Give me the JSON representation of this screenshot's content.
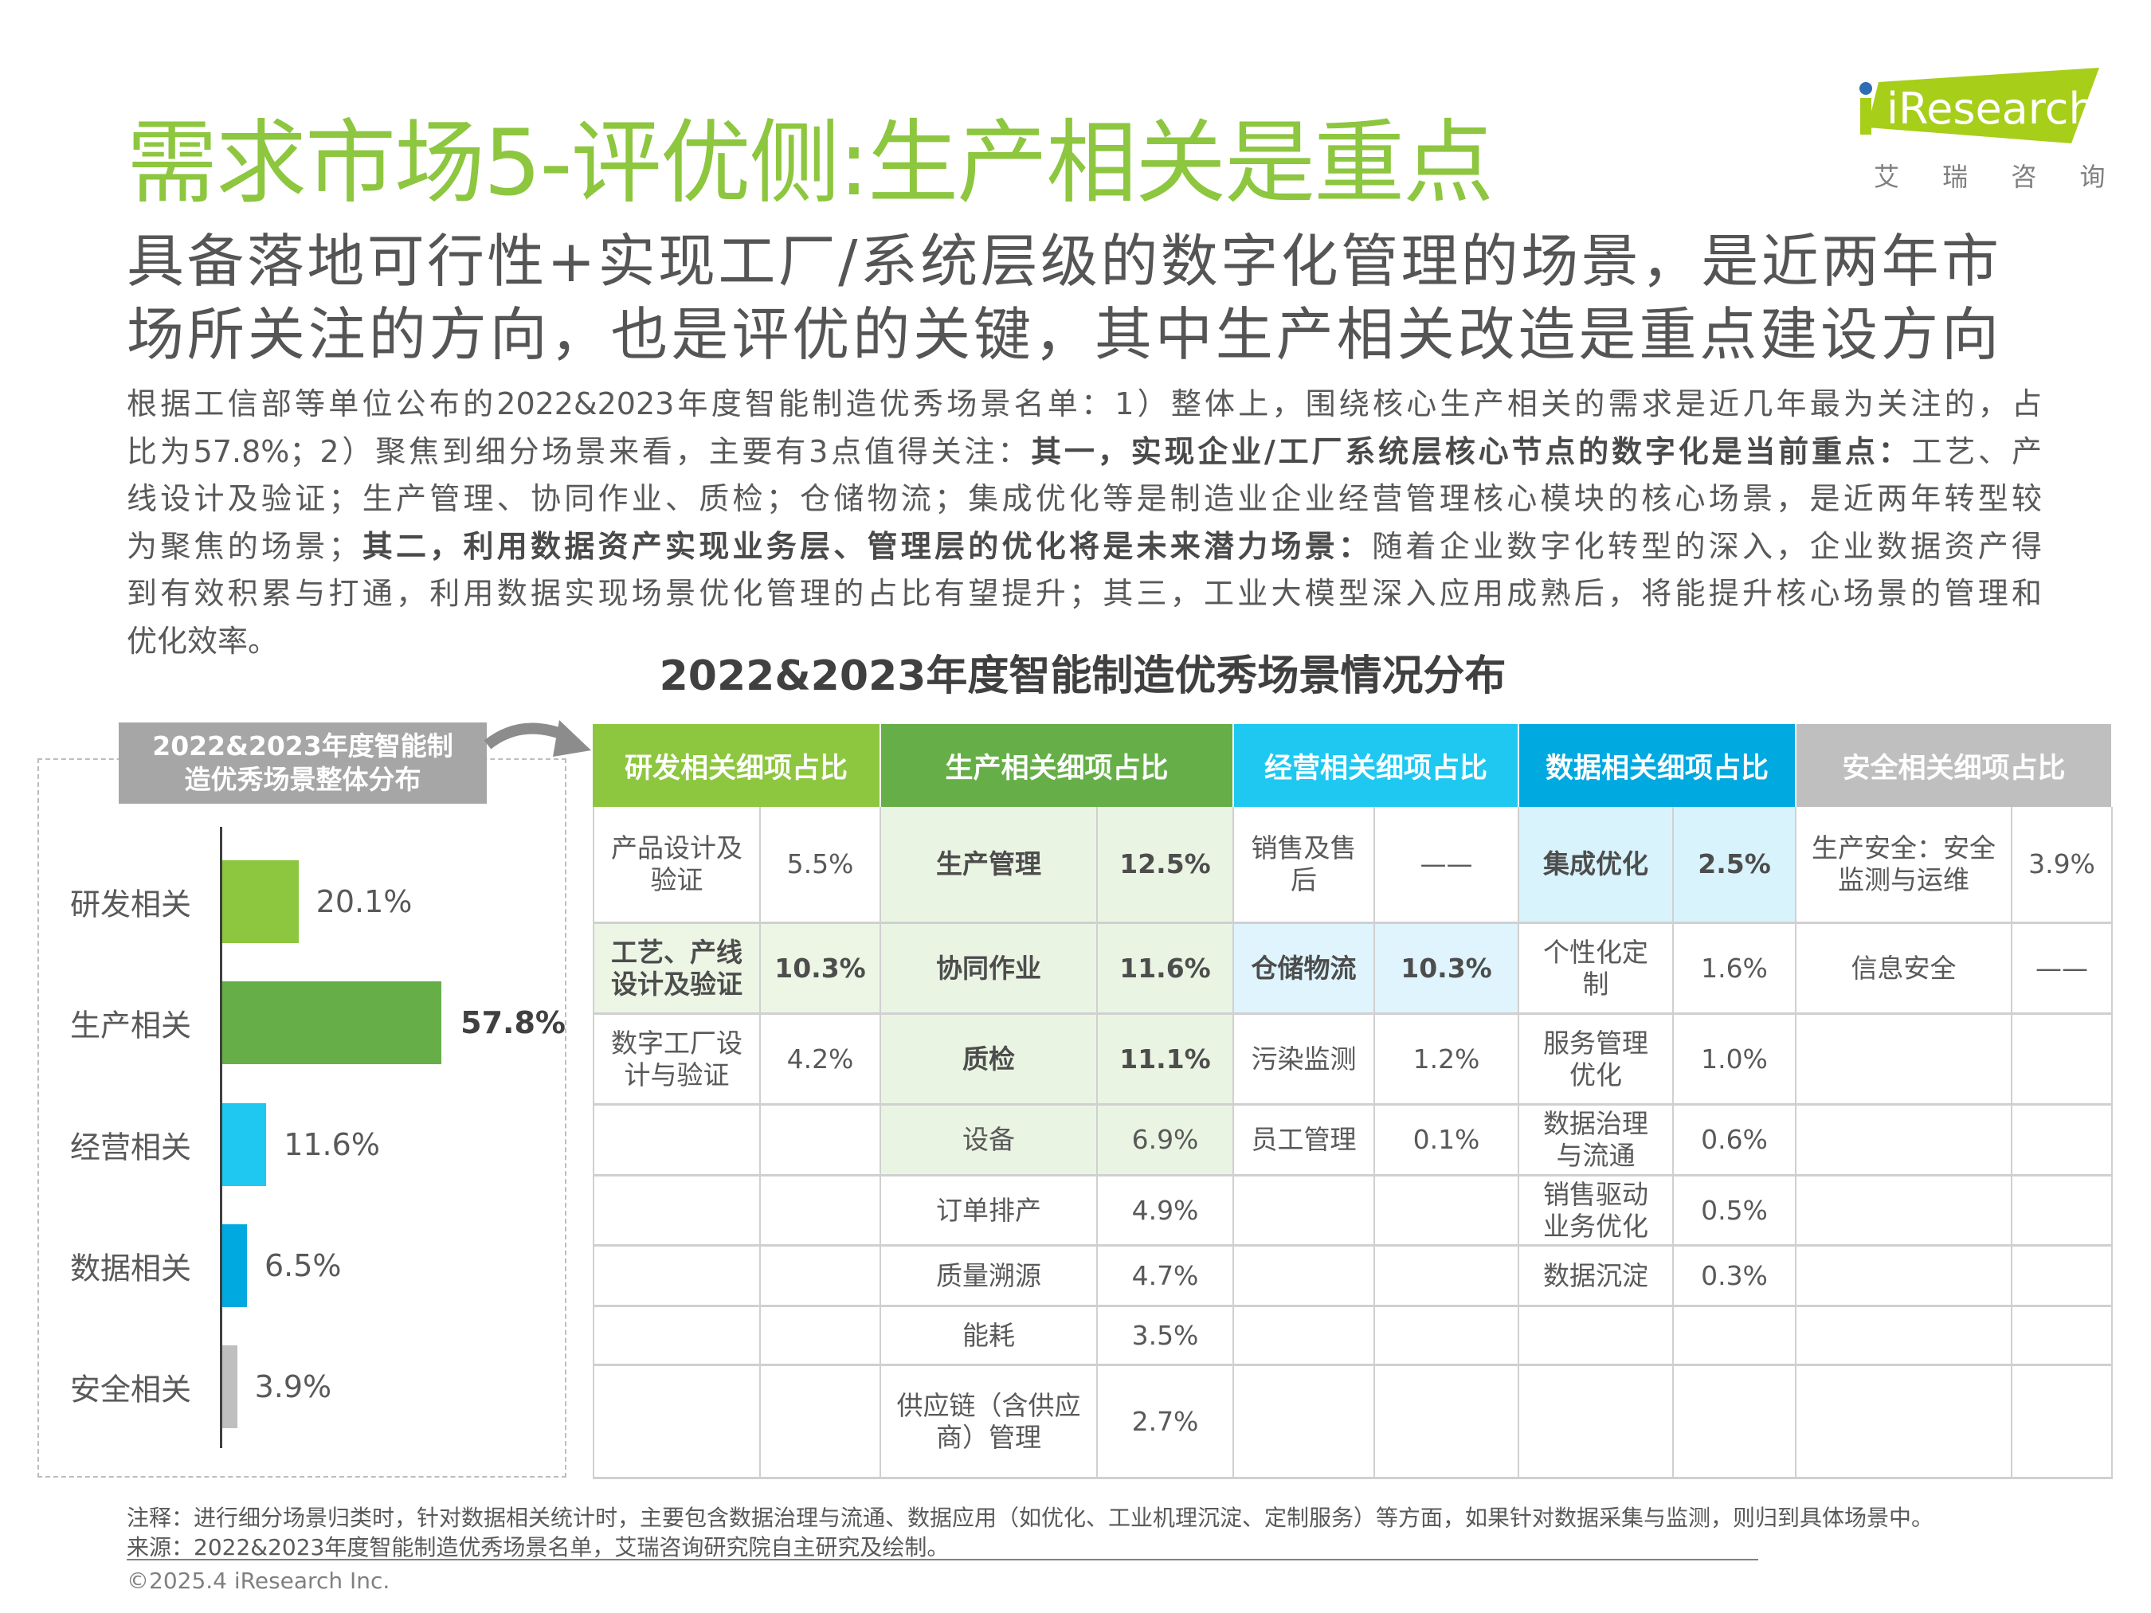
{
  "header": {
    "title": "需求市场5-评优侧:生产相关是重点",
    "subtitle_lines": [
      "具备落地可行性+实现工厂/系统层级的数字化管理的场景，是近两年市",
      "场所关注的方向，也是评优的关键，其中生产相关改造是重点建设方向"
    ]
  },
  "logo": {
    "brand": "iResearch",
    "chinese": "艾 瑞 咨 询",
    "brand_color": "#A7CE19",
    "dot_color": "#2E6DB4"
  },
  "body_lines": [
    [
      {
        "t": "根据工信部等单位公布的2022&2023年度智能制造优秀场景名单：1）整体上，围绕核心生产相关的需求是近几年最为关注的，占",
        "b": false
      }
    ],
    [
      {
        "t": "比为57.8%；2）聚焦到细分场景来看，主要有3点值得关注：",
        "b": false
      },
      {
        "t": "其一，实现企业/工厂系统层核心节点的数字化是当前重点：",
        "b": true
      },
      {
        "t": "工艺、产",
        "b": false
      }
    ],
    [
      {
        "t": "线设计及验证；生产管理、协同作业、质检；仓储物流；集成优化等是制造业企业经营管理核心模块的核心场景，是近两年转型较",
        "b": false
      }
    ],
    [
      {
        "t": "为聚焦的场景；",
        "b": false
      },
      {
        "t": "其二，利用数据资产实现业务层、管理层的优化将是未来潜力场景：",
        "b": true
      },
      {
        "t": "随着企业数字化转型的深入，企业数据资产得",
        "b": false
      }
    ],
    [
      {
        "t": "到有效积累与打通，利用数据实现场景优化管理的占比有望提升；其三，工业大模型深入应用成熟后，将能提升核心场景的管理和",
        "b": false
      }
    ],
    [
      {
        "t": "优化效率。",
        "b": false
      }
    ]
  ],
  "chart_title": "2022&2023年度智能制造优秀场景情况分布",
  "chart_data": {
    "type": "bar",
    "orientation": "horizontal",
    "title": "2022&2023年度智能制造优秀场景整体分布",
    "categories": [
      "研发相关",
      "生产相关",
      "经营相关",
      "数据相关",
      "安全相关"
    ],
    "values": [
      20.1,
      57.8,
      11.6,
      6.5,
      3.9
    ],
    "labels": [
      "20.1%",
      "57.8%",
      "11.6%",
      "6.5%",
      "3.9%"
    ],
    "colors": [
      "#8DC63F",
      "#66AF48",
      "#1EC8F0",
      "#00A9E0",
      "#BFBFBF"
    ],
    "bold_label": [
      false,
      true,
      false,
      false,
      false
    ],
    "unit": "%",
    "grid": false
  },
  "table": {
    "groups": [
      {
        "header": "研发相关细项占比",
        "color": "#8DC63F",
        "hl": "#EDF5E5",
        "rows": [
          {
            "name": "产品设计及验证",
            "value": "5.5%"
          },
          {
            "name": "工艺、产线设计及验证",
            "value": "10.3%",
            "bold": true,
            "highlight": true
          },
          {
            "name": "数字工厂设计与验证",
            "value": "4.2%"
          }
        ]
      },
      {
        "header": "生产相关细项占比",
        "color": "#66AF48",
        "hl": "#EAF4E3",
        "rows": [
          {
            "name": "生产管理",
            "value": "12.5%",
            "bold": true,
            "highlight": true
          },
          {
            "name": "协同作业",
            "value": "11.6%",
            "bold": true,
            "highlight": true
          },
          {
            "name": "质检",
            "value": "11.1%",
            "bold": true,
            "highlight": true
          },
          {
            "name": "设备",
            "value": "6.9%",
            "highlight": true
          },
          {
            "name": "订单排产",
            "value": "4.9%"
          },
          {
            "name": "质量溯源",
            "value": "4.7%"
          },
          {
            "name": "能耗",
            "value": "3.5%"
          },
          {
            "name": "供应链（含供应商）管理",
            "value": "2.7%"
          }
        ]
      },
      {
        "header": "经营相关细项占比",
        "color": "#1EC8F0",
        "hl": "#DFF4FC",
        "rows": [
          {
            "name": "销售及售后",
            "value": "——"
          },
          {
            "name": "仓储物流",
            "value": "10.3%",
            "bold": true,
            "highlight": true
          },
          {
            "name": "污染监测",
            "value": "1.2%"
          },
          {
            "name": "员工管理",
            "value": "0.1%"
          }
        ]
      },
      {
        "header": "数据相关细项占比",
        "color": "#00A9E0",
        "hl": "#D9F3FC",
        "rows": [
          {
            "name": "集成优化",
            "value": "2.5%",
            "bold": true,
            "highlight": true
          },
          {
            "name": "个性化定制",
            "value": "1.6%"
          },
          {
            "name": "服务管理优化",
            "value": "1.0%"
          },
          {
            "name": "数据治理与流通",
            "value": "0.6%"
          },
          {
            "name": "销售驱动业务优化",
            "value": "0.5%"
          },
          {
            "name": "数据沉淀",
            "value": "0.3%"
          }
        ]
      },
      {
        "header": "安全相关细项占比",
        "color": "#BFBFBF",
        "hl": "#F2F2F2",
        "rows": [
          {
            "name": "生产安全：安全监测与运维",
            "value": "3.9%"
          },
          {
            "name": "信息安全",
            "value": "——"
          }
        ]
      }
    ]
  },
  "footer": {
    "note": "注释：进行细分场景归类时，针对数据相关统计时，主要包含数据治理与流通、数据应用（如优化、工业机理沉淀、定制服务）等方面，如果针对数据采集与监测，则归到具体场景中。",
    "source": "来源：2022&2023年度智能制造优秀场景名单，艾瑞咨询研究院自主研究及绘制。",
    "copyright": "©2025.4 iResearch Inc."
  }
}
